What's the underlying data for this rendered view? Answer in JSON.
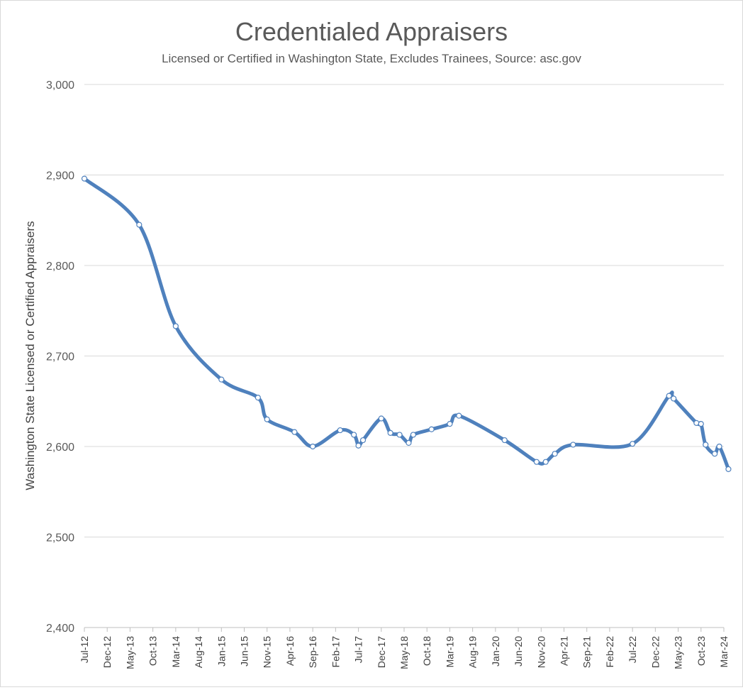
{
  "chart_data": {
    "type": "line",
    "title": "Credentialed Appraisers",
    "subtitle": "Licensed or Certified in Washington State, Excludes Trainees, Source: asc.gov",
    "ylabel": "Washington State Licensed or Certified Appraisers",
    "xlabel": "",
    "ylim": [
      2400,
      3000
    ],
    "yticks": [
      "2,400",
      "2,500",
      "2,600",
      "2,700",
      "2,800",
      "2,900",
      "3,000"
    ],
    "ytick_values": [
      2400,
      2500,
      2600,
      2700,
      2800,
      2900,
      3000
    ],
    "categories": [
      "Jul-12",
      "Dec-12",
      "May-13",
      "Oct-13",
      "Mar-14",
      "Aug-14",
      "Jan-15",
      "Jun-15",
      "Nov-15",
      "Apr-16",
      "Sep-16",
      "Feb-17",
      "Jul-17",
      "Dec-17",
      "May-18",
      "Oct-18",
      "Mar-19",
      "Aug-19",
      "Jan-20",
      "Jun-20",
      "Nov-20",
      "Apr-21",
      "Sep-21",
      "Feb-22",
      "Jul-22",
      "Dec-22",
      "May-23",
      "Oct-23",
      "Mar-24"
    ],
    "grid": true,
    "line_color": "#4f81bd",
    "series": [
      {
        "points": [
          {
            "x": "2012-07",
            "y": 2896
          },
          {
            "x": "2013-07",
            "y": 2845
          },
          {
            "x": "2014-03",
            "y": 2733
          },
          {
            "x": "2015-01",
            "y": 2674
          },
          {
            "x": "2015-09",
            "y": 2654
          },
          {
            "x": "2015-11",
            "y": 2630
          },
          {
            "x": "2016-05",
            "y": 2616
          },
          {
            "x": "2016-09",
            "y": 2600
          },
          {
            "x": "2017-03",
            "y": 2618
          },
          {
            "x": "2017-06",
            "y": 2613
          },
          {
            "x": "2017-07",
            "y": 2601
          },
          {
            "x": "2017-08",
            "y": 2607
          },
          {
            "x": "2017-12",
            "y": 2631
          },
          {
            "x": "2018-02",
            "y": 2615
          },
          {
            "x": "2018-04",
            "y": 2613
          },
          {
            "x": "2018-06",
            "y": 2604
          },
          {
            "x": "2018-07",
            "y": 2613
          },
          {
            "x": "2018-11",
            "y": 2619
          },
          {
            "x": "2019-03",
            "y": 2625
          },
          {
            "x": "2019-05",
            "y": 2634
          },
          {
            "x": "2020-03",
            "y": 2607
          },
          {
            "x": "2020-10",
            "y": 2583
          },
          {
            "x": "2020-12",
            "y": 2583
          },
          {
            "x": "2021-02",
            "y": 2592
          },
          {
            "x": "2021-06",
            "y": 2602
          },
          {
            "x": "2022-07",
            "y": 2603
          },
          {
            "x": "2023-03",
            "y": 2656
          },
          {
            "x": "2023-04",
            "y": 2653
          },
          {
            "x": "2023-09",
            "y": 2626
          },
          {
            "x": "2023-10",
            "y": 2625
          },
          {
            "x": "2023-11",
            "y": 2602
          },
          {
            "x": "2024-01",
            "y": 2592
          },
          {
            "x": "2024-02",
            "y": 2600
          },
          {
            "x": "2024-04",
            "y": 2575
          }
        ]
      }
    ]
  }
}
